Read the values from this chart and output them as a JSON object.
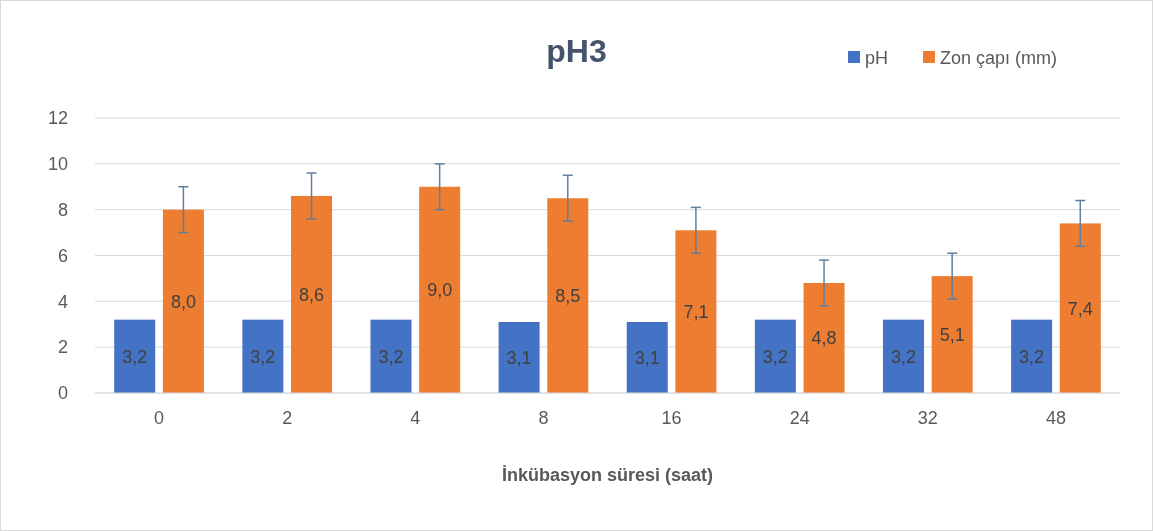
{
  "chart_data": {
    "type": "bar",
    "title": "pH3",
    "xlabel": "İnkübasyon süresi (saat)",
    "categories": [
      "0",
      "2",
      "4",
      "8",
      "16",
      "24",
      "32",
      "48"
    ],
    "series": [
      {
        "name": "pH",
        "color": "#4472c4",
        "values": [
          3.2,
          3.2,
          3.2,
          3.1,
          3.1,
          3.2,
          3.2,
          3.2
        ],
        "value_labels": [
          "3,2",
          "3,2",
          "3,2",
          "3,1",
          "3,1",
          "3,2",
          "3,2",
          "3,2"
        ]
      },
      {
        "name": "Zon çapı (mm)",
        "color": "#ed7d31",
        "values": [
          8.0,
          8.6,
          9.0,
          8.5,
          7.1,
          4.8,
          5.1,
          7.4
        ],
        "value_labels": [
          "8,0",
          "8,6",
          "9,0",
          "8,5",
          "7,1",
          "4,8",
          "5,1",
          "7,4"
        ],
        "errors": [
          1,
          1,
          1,
          1,
          1,
          1,
          1,
          1
        ]
      }
    ],
    "ylim": [
      0,
      12
    ],
    "yticks": [
      0,
      2,
      4,
      6,
      8,
      10,
      12
    ],
    "grid": "y",
    "legend": "top right"
  }
}
